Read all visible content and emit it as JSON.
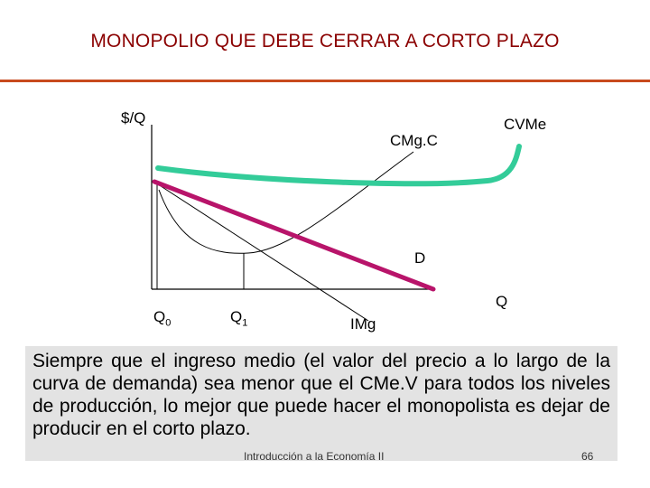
{
  "title": "MONOPOLIO QUE DEBE CERRAR A CORTO PLAZO",
  "labels": {
    "y_axis": "$/Q",
    "x_axis": "Q",
    "cmgc": "CMg.C",
    "cvme": "CVMe",
    "demand": "D",
    "img": "IMg",
    "q0_base": "Q",
    "q0_sub": "0",
    "q1_base": "Q",
    "q1_sub": "1"
  },
  "colors": {
    "title": "#8b0000",
    "rule": "#c84a1e",
    "cvme_curve": "#33cc99",
    "demand_line": "#b8146a",
    "text_box": "#e3e3e3"
  },
  "body_text": "Siempre que el ingreso medio (el valor del precio a lo largo de la curva de demanda) sea menor que el CMe.V para todos los niveles de producción, lo mejor que puede hacer el monopolista es dejar de producir en el corto plazo.",
  "footer": "Introducción a la Economía II",
  "page_number": "66"
}
